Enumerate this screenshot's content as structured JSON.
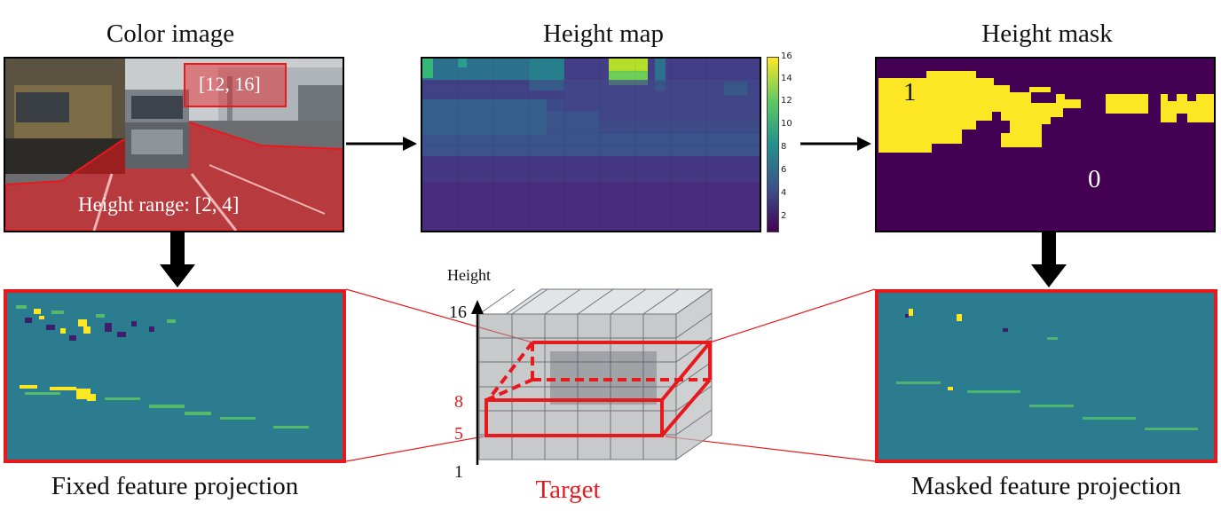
{
  "titles": {
    "color_image": "Color image",
    "height_map": "Height map",
    "height_mask": "Height mask"
  },
  "color_image": {
    "region_top_label": "[12, 16]",
    "region_bottom_label": "Height range: [2, 4]"
  },
  "height_map": {
    "colorbar_ticks": [
      "16",
      "14",
      "12",
      "10",
      "8",
      "6",
      "4",
      "2"
    ]
  },
  "height_mask": {
    "label_one": "1",
    "label_zero": "0",
    "colors": {
      "one": "#fde725",
      "zero": "#440154"
    }
  },
  "voxel": {
    "axis_label": "Height",
    "ticks": {
      "t16": "16",
      "t8": "8",
      "t5": "5",
      "t1": "1"
    },
    "highlight_color": "#e8191c"
  },
  "captions": {
    "fixed": "Fixed feature projection",
    "target": "Target",
    "masked": "Masked feature projection"
  },
  "colors": {
    "accent_red": "#e8191c",
    "viridis_dark": "#440154",
    "viridis_mid": "#31688e",
    "viridis_yellow": "#fde725",
    "feature_bg": "#2a7d8e"
  }
}
